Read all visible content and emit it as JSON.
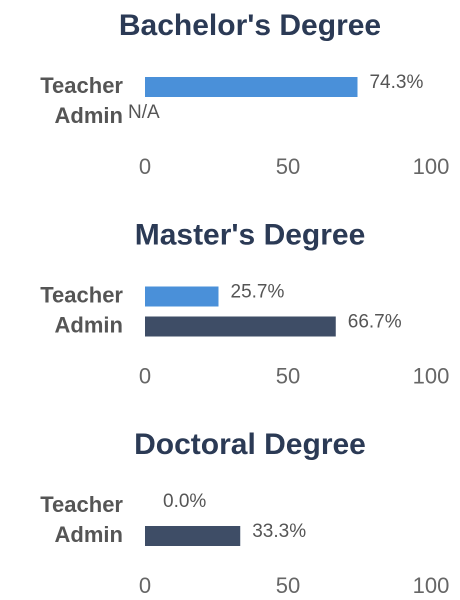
{
  "chart_data": [
    {
      "type": "bar",
      "title": "Bachelor's Degree",
      "categories": [
        "Teacher",
        "Admin"
      ],
      "values": [
        74.3,
        null
      ],
      "value_labels": [
        "74.3%",
        "N/A"
      ],
      "colors": [
        "#4a90d9",
        "#3e4d66"
      ],
      "xlim": [
        0,
        100
      ],
      "xticks": [
        0,
        50,
        100
      ]
    },
    {
      "type": "bar",
      "title": "Master's Degree",
      "categories": [
        "Teacher",
        "Admin"
      ],
      "values": [
        25.7,
        66.7
      ],
      "value_labels": [
        "25.7%",
        "66.7%"
      ],
      "colors": [
        "#4a90d9",
        "#3e4d66"
      ],
      "xlim": [
        0,
        100
      ],
      "xticks": [
        0,
        50,
        100
      ]
    },
    {
      "type": "bar",
      "title": "Doctoral Degree",
      "categories": [
        "Teacher",
        "Admin"
      ],
      "values": [
        0.0,
        33.3
      ],
      "value_labels": [
        "0.0%",
        "33.3%"
      ],
      "colors": [
        "#4a90d9",
        "#3e4d66"
      ],
      "xlim": [
        0,
        100
      ],
      "xticks": [
        0,
        50,
        100
      ]
    }
  ]
}
